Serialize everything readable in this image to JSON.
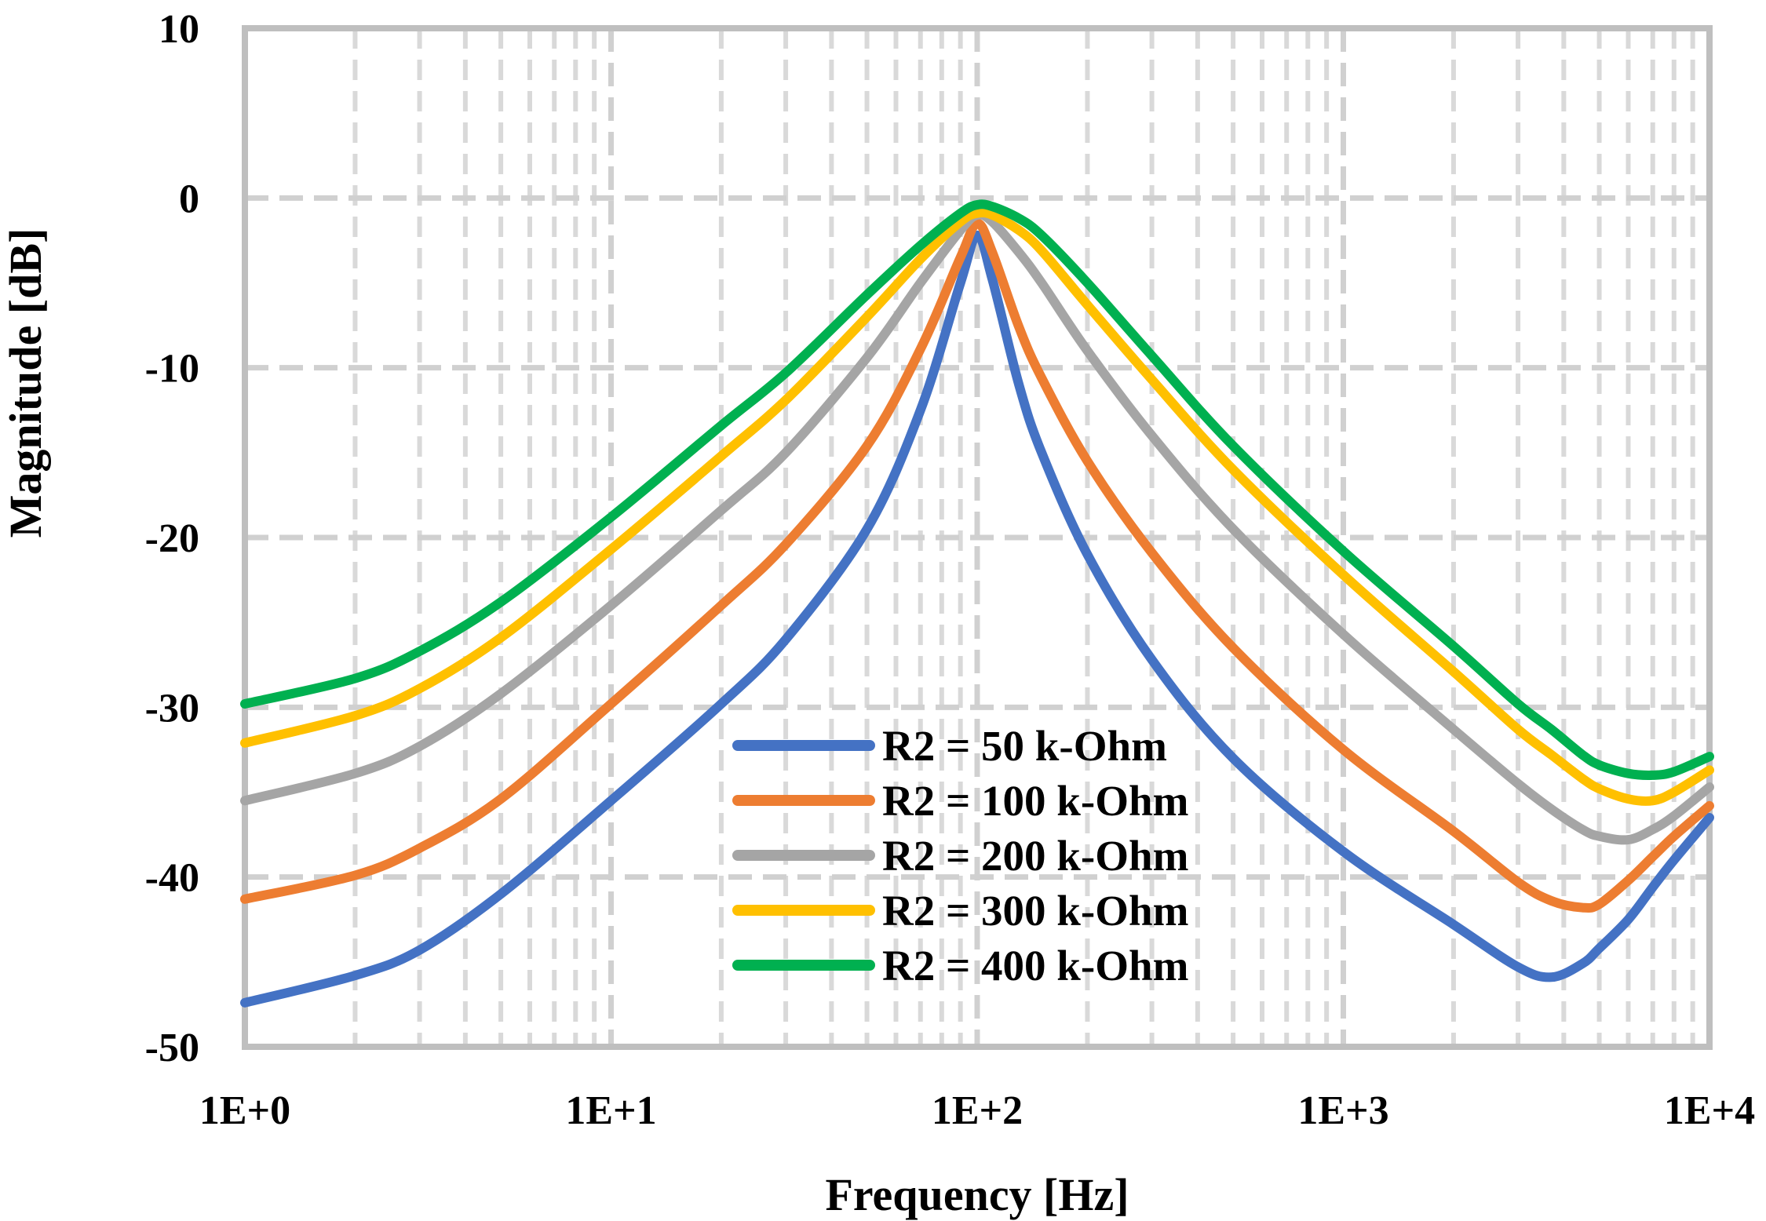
{
  "chart_data": {
    "type": "line",
    "title": "",
    "xlabel": "Frequency [Hz]",
    "ylabel": "Magnitude [dB]",
    "xscale": "log",
    "xlim": [
      1,
      10000
    ],
    "ylim": [
      -50,
      10
    ],
    "xticks": [
      {
        "value": 1,
        "label": "1E+0"
      },
      {
        "value": 10,
        "label": "1E+1"
      },
      {
        "value": 100,
        "label": "1E+2"
      },
      {
        "value": 1000,
        "label": "1E+3"
      },
      {
        "value": 10000,
        "label": "1E+4"
      }
    ],
    "yticks": [
      {
        "value": 10,
        "label": "10"
      },
      {
        "value": 0,
        "label": "0"
      },
      {
        "value": -10,
        "label": "-10"
      },
      {
        "value": -20,
        "label": "-20"
      },
      {
        "value": -30,
        "label": "-30"
      },
      {
        "value": -40,
        "label": "-40"
      },
      {
        "value": -50,
        "label": "-50"
      }
    ],
    "grid": true,
    "legend_position": "bottom-center",
    "x": [
      1,
      2,
      3,
      5,
      10,
      20,
      30,
      50,
      70,
      90,
      100,
      110,
      130,
      150,
      200,
      300,
      500,
      1000,
      2000,
      3000,
      3700,
      4500,
      5000,
      6000,
      7000,
      8000,
      10000
    ],
    "series": [
      {
        "name": "R2 = 50 k-Ohm",
        "color": "#4472C4",
        "values": [
          -47.4,
          -45.8,
          -44.3,
          -41.0,
          -35.5,
          -29.8,
          -26.0,
          -19.5,
          -12.5,
          -5.0,
          -2.2,
          -4.8,
          -11.0,
          -15.0,
          -21.0,
          -27.2,
          -33.0,
          -38.5,
          -42.8,
          -45.3,
          -45.9,
          -45.1,
          -44.2,
          -42.5,
          -40.6,
          -39.0,
          -36.5
        ]
      },
      {
        "name": "R2 = 100 k-Ohm",
        "color": "#ED7D31",
        "values": [
          -41.3,
          -39.9,
          -38.3,
          -35.4,
          -29.8,
          -24.0,
          -20.4,
          -14.6,
          -8.9,
          -3.5,
          -1.5,
          -3.2,
          -7.6,
          -10.6,
          -15.5,
          -20.9,
          -26.5,
          -32.5,
          -37.3,
          -40.3,
          -41.4,
          -41.8,
          -41.6,
          -40.2,
          -38.8,
          -37.6,
          -35.8
        ]
      },
      {
        "name": "R2 = 200 k-Ohm",
        "color": "#A5A5A5",
        "values": [
          -35.5,
          -33.9,
          -32.3,
          -29.2,
          -24.0,
          -18.4,
          -15.0,
          -9.4,
          -5.0,
          -1.9,
          -1.0,
          -1.4,
          -3.2,
          -5.0,
          -9.0,
          -14.0,
          -19.5,
          -25.7,
          -31.3,
          -34.5,
          -36.0,
          -37.2,
          -37.6,
          -37.8,
          -37.2,
          -36.4,
          -34.7
        ]
      },
      {
        "name": "R2 = 300 k-Ohm",
        "color": "#FFC000",
        "values": [
          -32.1,
          -30.5,
          -28.9,
          -25.9,
          -20.7,
          -15.2,
          -11.9,
          -7.0,
          -3.6,
          -1.4,
          -0.9,
          -1.0,
          -1.9,
          -3.1,
          -6.3,
          -10.7,
          -16.0,
          -22.2,
          -27.9,
          -31.3,
          -32.8,
          -34.2,
          -34.8,
          -35.4,
          -35.5,
          -35.0,
          -33.7
        ]
      },
      {
        "name": "R2 = 400 k-Ohm",
        "color": "#00B050",
        "values": [
          -29.8,
          -28.3,
          -26.7,
          -23.8,
          -18.8,
          -13.4,
          -10.3,
          -5.7,
          -2.8,
          -0.9,
          -0.4,
          -0.5,
          -1.2,
          -2.2,
          -5.0,
          -9.3,
          -14.6,
          -20.8,
          -26.4,
          -29.8,
          -31.3,
          -32.8,
          -33.4,
          -33.9,
          -34.0,
          -33.8,
          -32.9
        ]
      }
    ]
  }
}
